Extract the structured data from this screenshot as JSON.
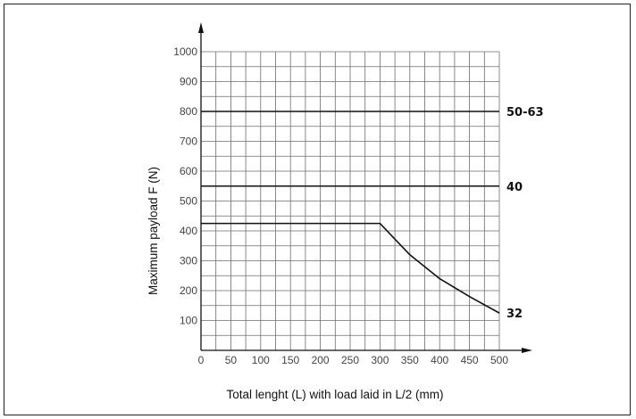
{
  "chart_data": {
    "type": "line",
    "title": "",
    "xlabel": "Total lenght (L) with load laid in L/2 (mm)",
    "ylabel": "Maximum payload F (N)",
    "xlim": [
      0,
      500
    ],
    "ylim": [
      0,
      1000
    ],
    "x_ticks": [
      "0",
      "50",
      "100",
      "150",
      "200",
      "250",
      "300",
      "350",
      "400",
      "450",
      "500"
    ],
    "y_ticks": [
      "100",
      "200",
      "300",
      "400",
      "500",
      "600",
      "700",
      "800",
      "900",
      "1000"
    ],
    "grid_minor_step": {
      "x": 25,
      "y": 50
    },
    "grid": true,
    "series": [
      {
        "name": "50-63",
        "x": [
          0,
          500
        ],
        "y": [
          800,
          800
        ]
      },
      {
        "name": "40",
        "x": [
          0,
          500
        ],
        "y": [
          550,
          550
        ]
      },
      {
        "name": "32",
        "x": [
          0,
          300,
          350,
          400,
          450,
          500
        ],
        "y": [
          425,
          425,
          320,
          240,
          180,
          125
        ]
      }
    ],
    "line_color": "#111111",
    "grid_color": "#6e6e6e"
  }
}
